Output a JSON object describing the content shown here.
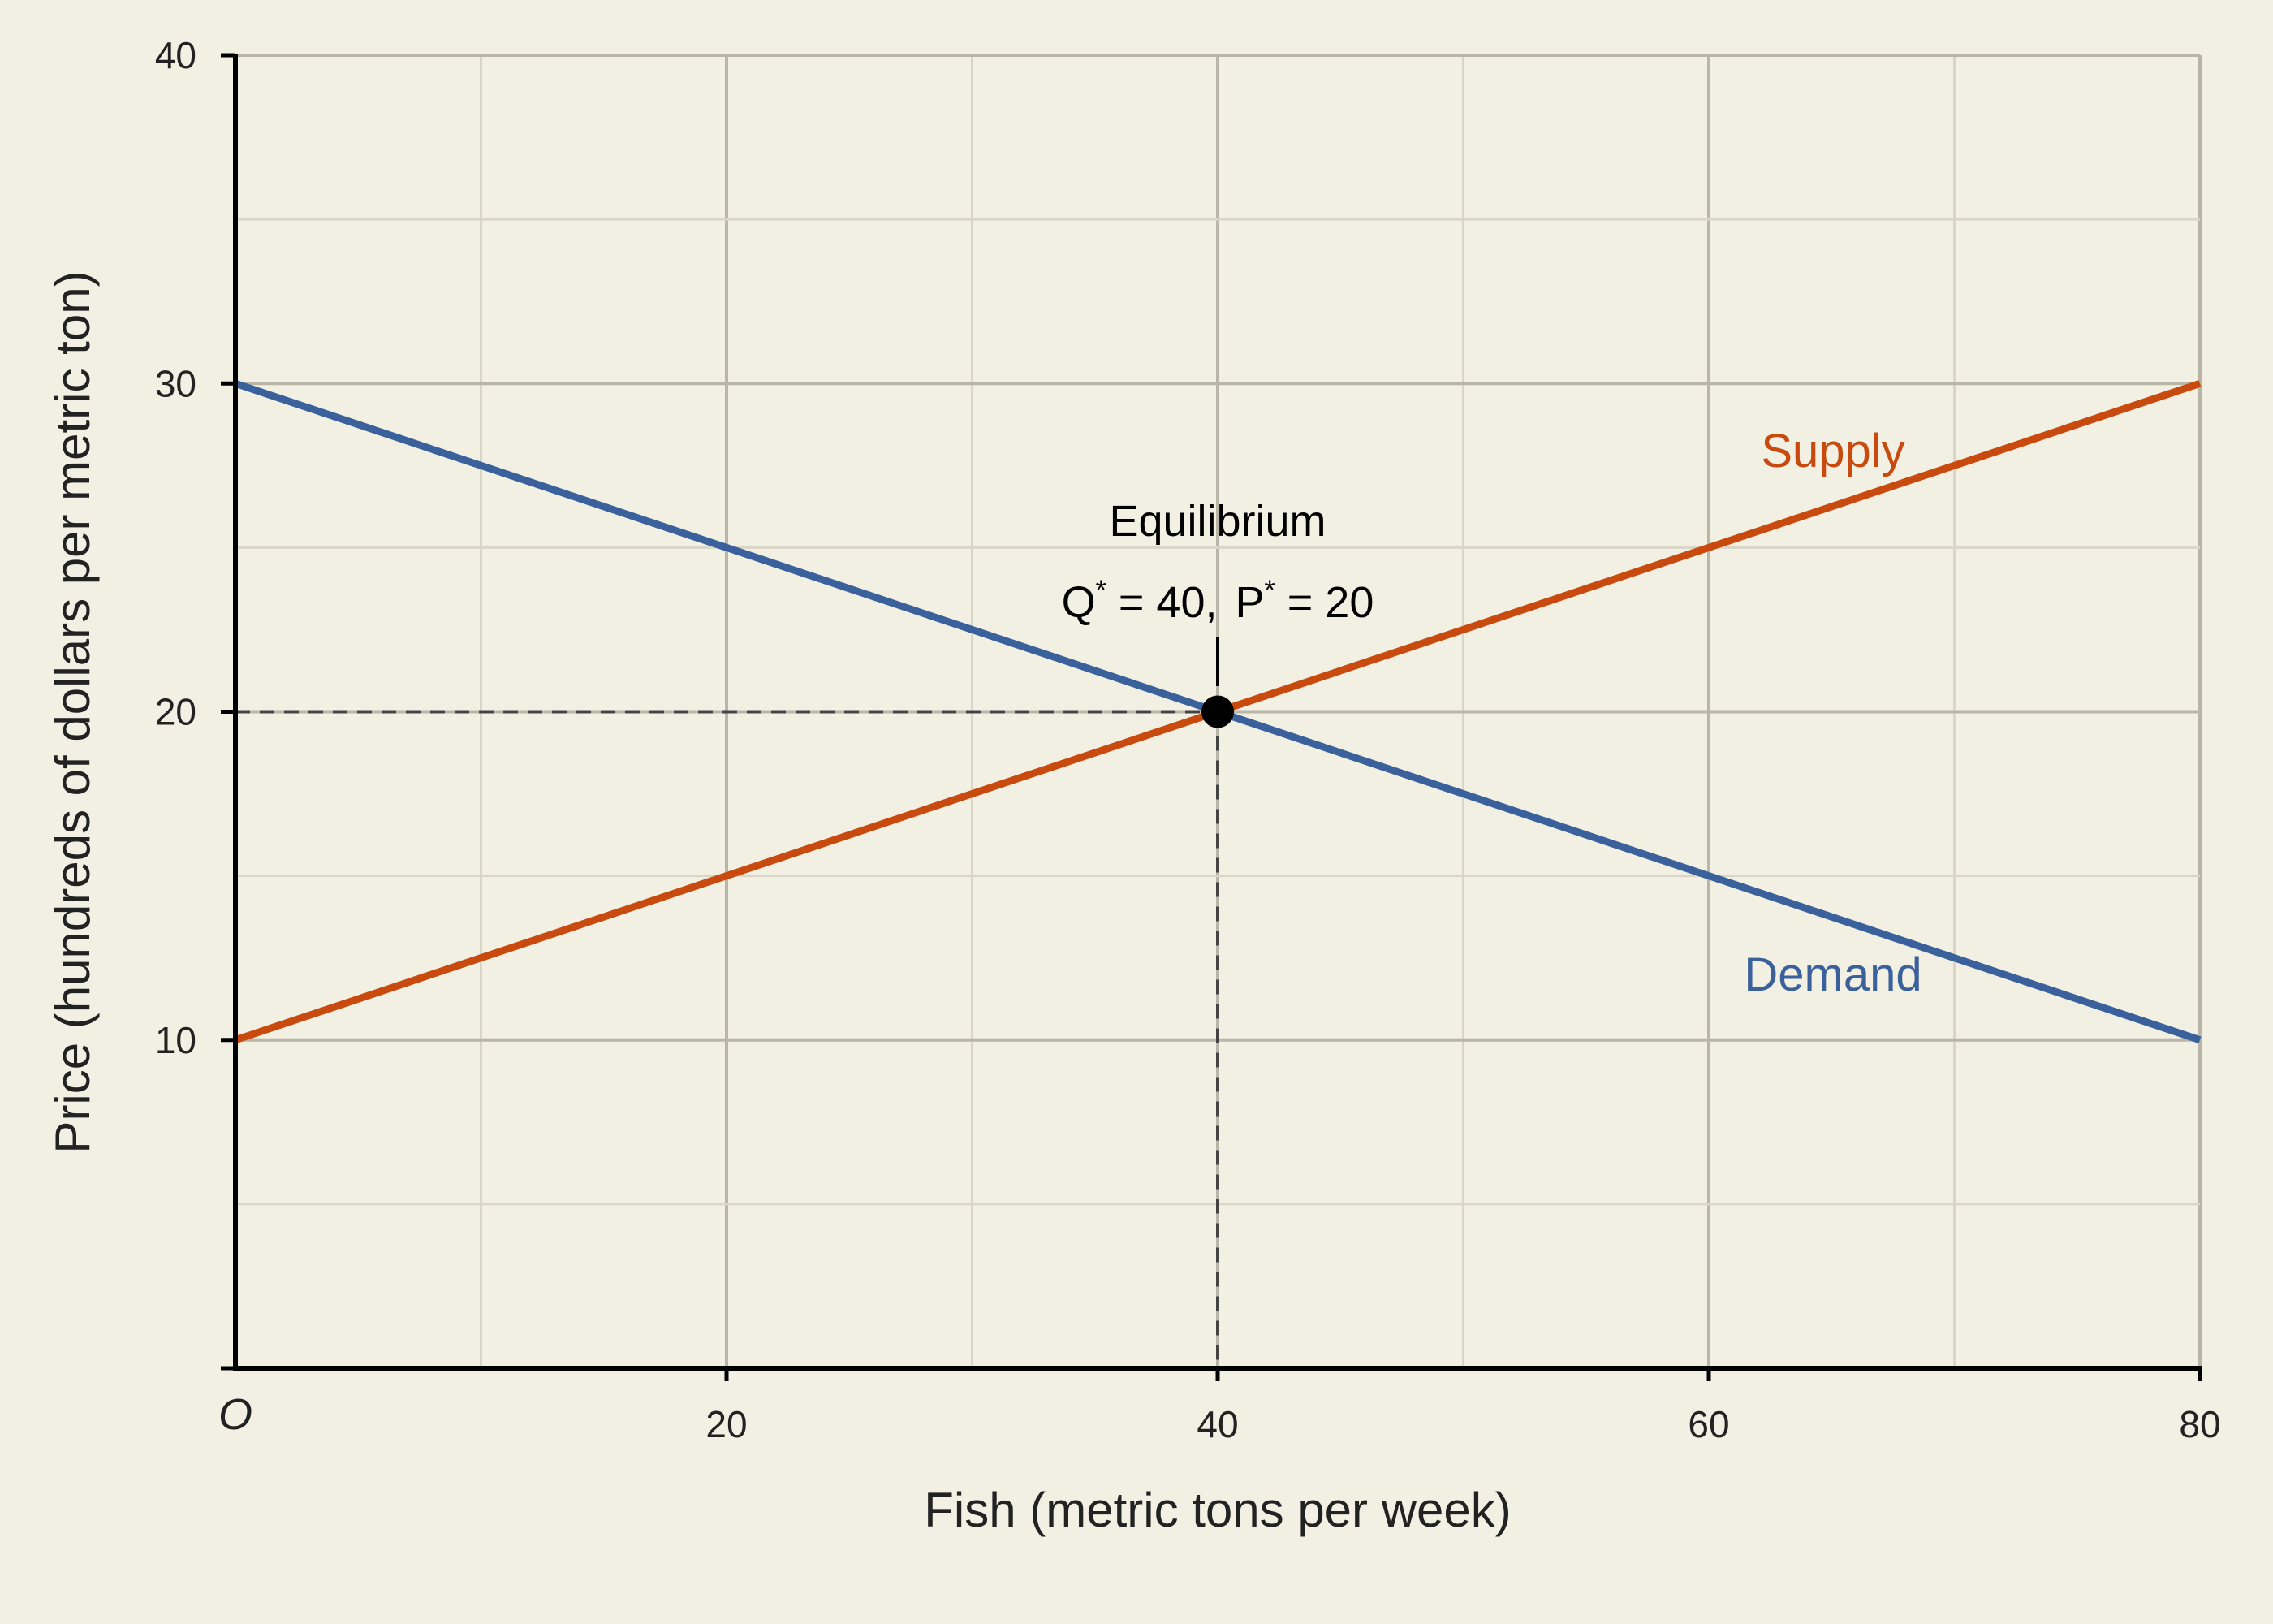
{
  "colors": {
    "background": "#f2efe3",
    "grid_major": "#b9b6a8",
    "grid_minor": "#d9d6c8",
    "axis": "#000000",
    "supply": "#c94a0e",
    "demand": "#3a619b",
    "text": "#222222"
  },
  "chart_data": {
    "type": "line",
    "xlabel": "Fish (metric tons per week)",
    "ylabel": "Price (hundreds of dollars per metric ton)",
    "origin_label": "O",
    "xlim": [
      0,
      80
    ],
    "ylim": [
      0,
      40
    ],
    "x_ticks": [
      20,
      40,
      60,
      80
    ],
    "y_ticks": [
      10,
      20,
      30,
      40
    ],
    "x_tick_labels": [
      "20",
      "40",
      "60",
      "80"
    ],
    "y_tick_labels": [
      "10",
      "20",
      "30",
      "40"
    ],
    "grid": true,
    "series": [
      {
        "name": "Supply",
        "color": "#c94a0e",
        "points": [
          [
            0,
            10
          ],
          [
            80,
            30
          ]
        ]
      },
      {
        "name": "Demand",
        "color": "#3a619b",
        "points": [
          [
            0,
            30
          ],
          [
            80,
            10
          ]
        ]
      }
    ],
    "equilibrium": {
      "title": "Equilibrium",
      "q": 40,
      "p": 20,
      "q_symbol": "Q",
      "p_symbol": "P",
      "star": "*",
      "q_text": " = 40,",
      "p_text": " = 20"
    }
  }
}
